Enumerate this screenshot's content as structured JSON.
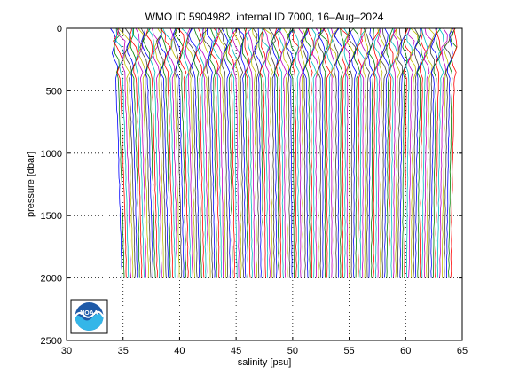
{
  "chart_data": {
    "type": "line",
    "title": "WMO ID 5904982, internal ID 7000, 16–Aug–2024",
    "xlabel": "salinity [psu]",
    "ylabel": "pressure [dbar]",
    "xlim": [
      30,
      65
    ],
    "ylim": [
      2500,
      0
    ],
    "y_reversed": true,
    "grid": true,
    "xticks": [
      30,
      35,
      40,
      45,
      50,
      55,
      60,
      65
    ],
    "xtick_labels": [
      "30",
      "35",
      "40",
      "45",
      "50",
      "55",
      "60",
      "65"
    ],
    "yticks": [
      0,
      500,
      1000,
      1500,
      2000,
      2500
    ],
    "ytick_labels": [
      "0",
      "500",
      "1000",
      "1500",
      "2000",
      "2500"
    ],
    "profile_style": "waterfall profiles, each offset in salinity",
    "profile_colors": [
      "#0000ff",
      "#008000",
      "#ff0000",
      "#00bfbf",
      "#bf00bf",
      "#bfbf00",
      "#404040"
    ],
    "series_summary": {
      "surface_salinity_range": [
        34.0,
        64.5
      ],
      "deep_salinity_range_at_2000": [
        34.9,
        64.0
      ],
      "max_pressure": 2000
    },
    "logo": {
      "name": "noaa-logo-icon",
      "text": "NOAA"
    }
  }
}
